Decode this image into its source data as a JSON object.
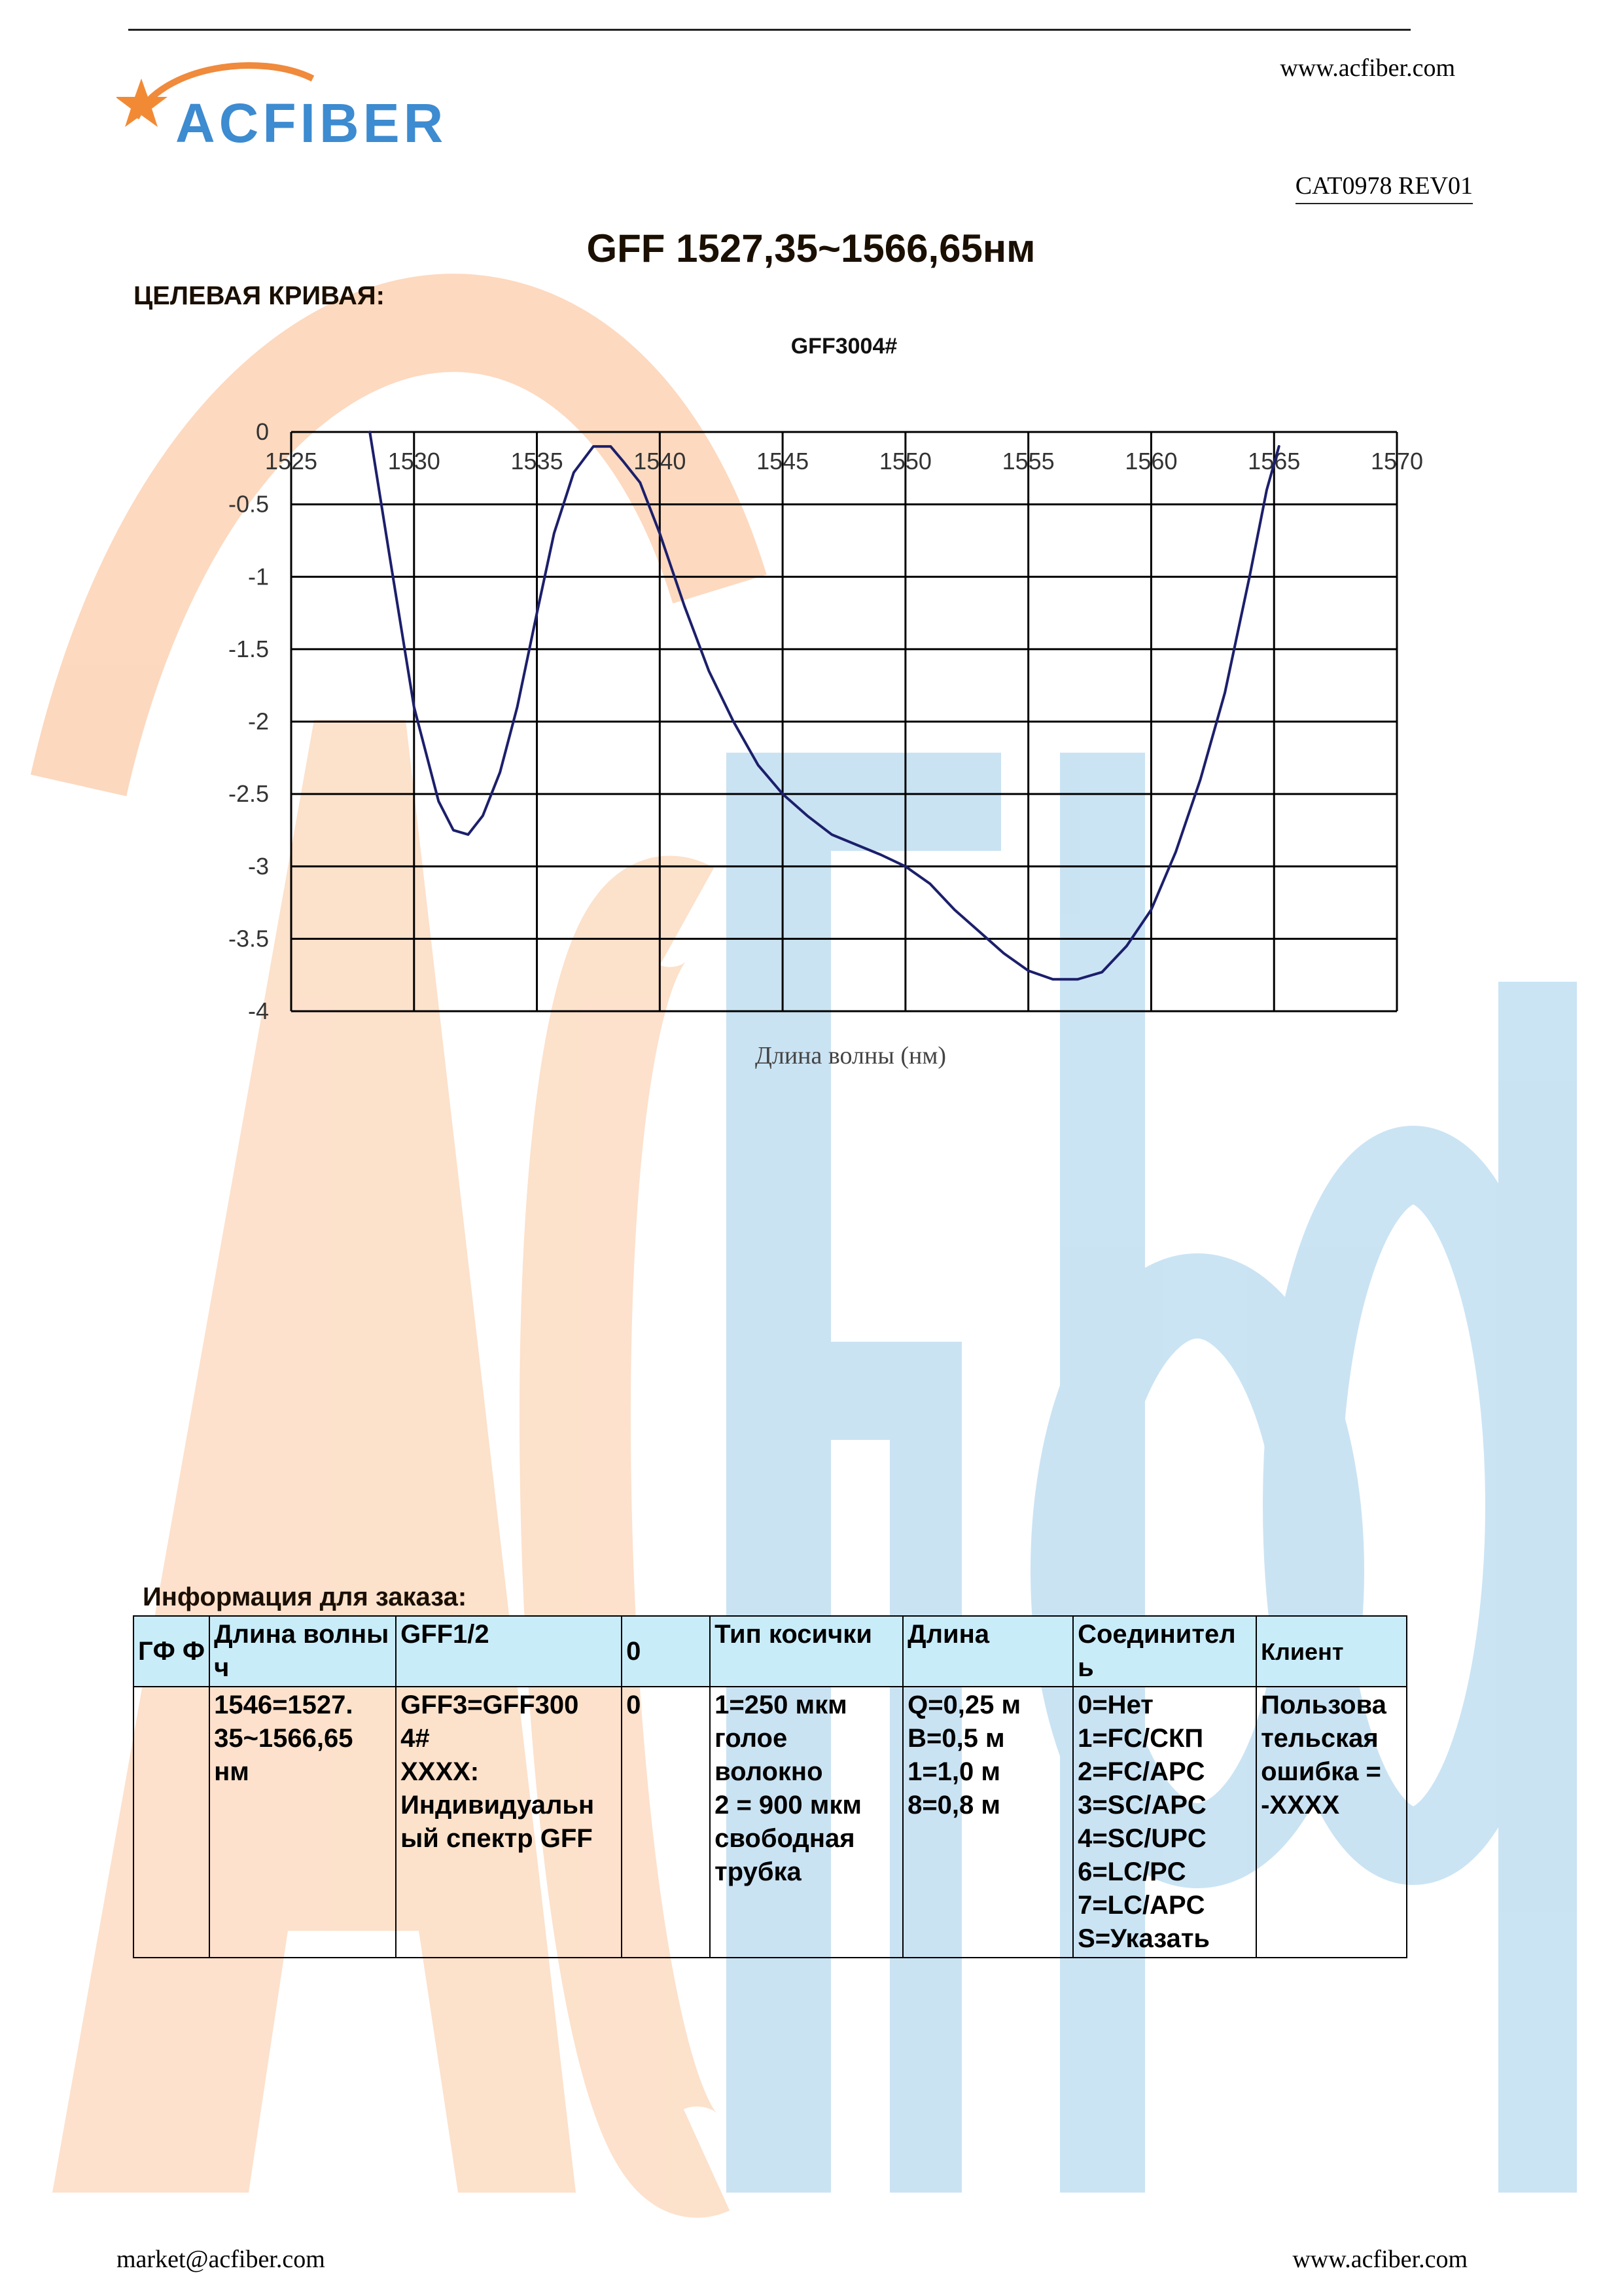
{
  "header": {
    "website": "www.acfiber.com",
    "logo_text": "ACFIBER",
    "catalog_code": "CAT0978 REV01"
  },
  "document": {
    "title": "GFF 1527,35~1566,65нм",
    "target_curve_label": "ЦЕЛЕВАЯ КРИВАЯ:"
  },
  "chart_data": {
    "type": "line",
    "title": "GFF3004#",
    "xlabel": "Длина волны (нм)",
    "ylabel": "",
    "xlim": [
      1525,
      1570
    ],
    "ylim": [
      -4,
      0
    ],
    "x_ticks": [
      "1525",
      "1530",
      "1535",
      "1540",
      "1545",
      "1550",
      "1555",
      "1560",
      "1565",
      "1570"
    ],
    "y_ticks": [
      "0",
      "-0.5",
      "-1",
      "-1.5",
      "-2",
      "-2.5",
      "-3",
      "-3.5",
      "-4"
    ],
    "grid": true,
    "legend": "none",
    "series": [
      {
        "color": "#1c1f6b",
        "x": [
          1528.2,
          1529.0,
          1530.0,
          1531.0,
          1531.6,
          1532.2,
          1532.8,
          1533.5,
          1534.2,
          1535.0,
          1535.7,
          1536.5,
          1537.3,
          1538.0,
          1538.5,
          1539.2,
          1540.0,
          1541.0,
          1542.0,
          1543.0,
          1544.0,
          1545.0,
          1546.0,
          1547.0,
          1548.0,
          1549.0,
          1550.0,
          1551.0,
          1552.0,
          1553.0,
          1554.0,
          1555.0,
          1556.0,
          1557.0,
          1558.0,
          1559.0,
          1560.0,
          1561.0,
          1562.0,
          1563.0,
          1564.0,
          1564.7,
          1565.2
        ],
        "values": [
          0.0,
          -0.85,
          -1.9,
          -2.55,
          -2.75,
          -2.78,
          -2.65,
          -2.35,
          -1.9,
          -1.25,
          -0.7,
          -0.28,
          -0.1,
          -0.1,
          -0.2,
          -0.35,
          -0.7,
          -1.2,
          -1.65,
          -2.0,
          -2.3,
          -2.5,
          -2.65,
          -2.78,
          -2.85,
          -2.92,
          -3.0,
          -3.12,
          -3.3,
          -3.45,
          -3.6,
          -3.72,
          -3.78,
          -3.78,
          -3.73,
          -3.55,
          -3.3,
          -2.9,
          -2.4,
          -1.8,
          -1.0,
          -0.4,
          -0.1
        ]
      }
    ]
  },
  "order": {
    "title": "Информация для заказа:",
    "header": [
      "ГФ Ф",
      "Длина волны\nч",
      "GFF1/2",
      "0",
      "Тип косички",
      "Длина",
      "Соединител\nь",
      "Клиент"
    ],
    "row": [
      "",
      "1546=1527.\n35~1566,65\nнм",
      "GFF3=GFF300\n4#\nXXXX:\nИндивидуальн\nый спектр GFF",
      "0",
      "1=250 мкм\nголое\nволокно\n2 = 900 мкм\nсвободная\nтрубка",
      "Q=0,25 м\nB=0,5 м\n1=1,0 м\n8=0,8 м",
      "0=Нет\n1=FC/СКП\n2=FC/APC\n3=SC/APC\n4=SC/UPC\n6=LC/PC\n7=LC/APC\nS=Указать",
      "Пользова\nтельская\nошибка =\n-XXXX"
    ]
  },
  "footer": {
    "email": "market@acfiber.com",
    "website": "www.acfiber.com"
  }
}
